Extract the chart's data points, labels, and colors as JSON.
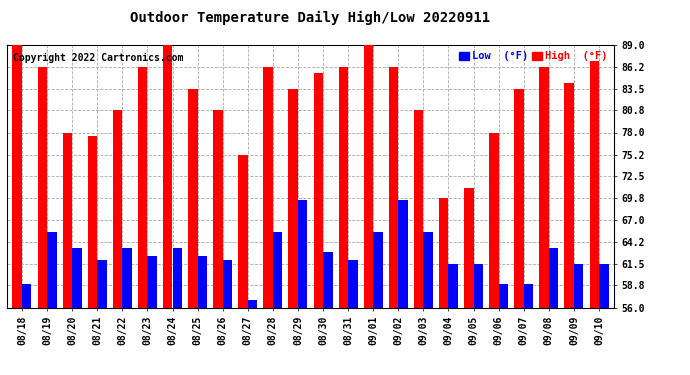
{
  "title": "Outdoor Temperature Daily High/Low 20220911",
  "copyright": "Copyright 2022 Cartronics.com",
  "legend_low": "Low  (°F)",
  "legend_high": "High  (°F)",
  "ylim": [
    56.0,
    89.0
  ],
  "yticks": [
    56.0,
    58.8,
    61.5,
    64.2,
    67.0,
    69.8,
    72.5,
    75.2,
    78.0,
    80.8,
    83.5,
    86.2,
    89.0
  ],
  "background_color": "#ffffff",
  "bar_color_high": "#ff0000",
  "bar_color_low": "#0000ff",
  "dates": [
    "08/18",
    "08/19",
    "08/20",
    "08/21",
    "08/22",
    "08/23",
    "08/24",
    "08/25",
    "08/26",
    "08/27",
    "08/28",
    "08/29",
    "08/30",
    "08/31",
    "09/01",
    "09/02",
    "09/03",
    "09/04",
    "09/05",
    "09/06",
    "09/07",
    "09/08",
    "09/09",
    "09/10"
  ],
  "highs": [
    89.0,
    86.2,
    78.0,
    77.5,
    80.8,
    86.2,
    89.0,
    83.5,
    80.8,
    75.2,
    86.2,
    83.5,
    85.5,
    86.2,
    89.2,
    86.2,
    80.8,
    69.8,
    71.0,
    78.0,
    83.5,
    86.2,
    84.2,
    87.0
  ],
  "lows": [
    59.0,
    65.5,
    63.5,
    62.0,
    63.5,
    62.5,
    63.5,
    62.5,
    62.0,
    57.0,
    65.5,
    69.5,
    63.0,
    62.0,
    65.5,
    69.5,
    65.5,
    61.5,
    61.5,
    59.0,
    59.0,
    63.5,
    61.5,
    61.5
  ],
  "fig_width": 6.9,
  "fig_height": 3.75,
  "dpi": 100,
  "bar_width": 0.38,
  "title_fontsize": 10,
  "tick_fontsize": 7,
  "copyright_fontsize": 7
}
